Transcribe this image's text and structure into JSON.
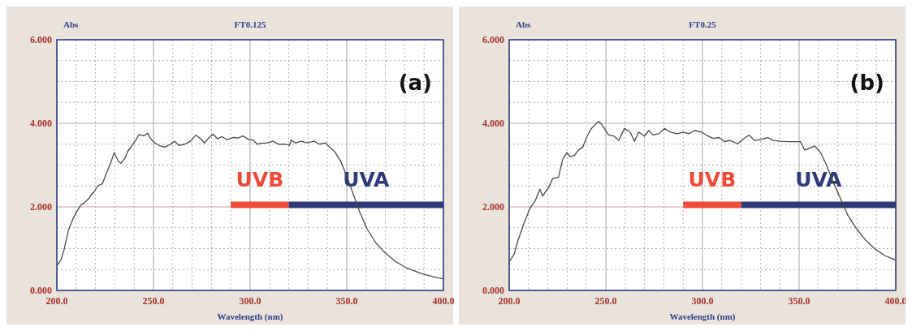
{
  "chart_data": [
    {
      "type": "line",
      "title": "FT0.125",
      "xlabel": "Wavelength (nm)",
      "ylabel": "Abs",
      "annotations": [
        "(a)"
      ],
      "xlim": [
        200,
        400
      ],
      "ylim": [
        0,
        6
      ],
      "xticks": [
        {
          "value": 200,
          "label": "200.0"
        },
        {
          "value": 250,
          "label": "250.0"
        },
        {
          "value": 300,
          "label": "300.0"
        },
        {
          "value": 350,
          "label": "350.0"
        },
        {
          "value": 400,
          "label": "400.0"
        }
      ],
      "yticks": [
        {
          "value": 0,
          "label": "0.000"
        },
        {
          "value": 2,
          "label": "2.000"
        },
        {
          "value": 4,
          "label": "4.000"
        },
        {
          "value": 6,
          "label": "6.000"
        }
      ],
      "grid": true,
      "legend": false,
      "marker": "none",
      "line_style": "solid",
      "series": [
        {
          "name": "UVB",
          "color": "#f04a3a",
          "x": [
            290,
            320
          ],
          "values": [
            2.05,
            2.05
          ]
        },
        {
          "name": "UVA",
          "color": "#2e3a78",
          "x": [
            320,
            400
          ],
          "values": [
            2.05,
            2.05
          ]
        },
        {
          "color": "#4a4a4a",
          "x": [
            200.3,
            202.2,
            203.7,
            205.9,
            208.1,
            210.3,
            212.5,
            214,
            215.4,
            216.9,
            217.6,
            219.1,
            221.3,
            223.5,
            225.7,
            228,
            229.7,
            231.6,
            233.1,
            235.3,
            236.8,
            239,
            241.2,
            242.6,
            244.9,
            247.1,
            248.5,
            250.7,
            252.9,
            255.9,
            258.8,
            261,
            263.2,
            266.2,
            269.1,
            272,
            274.3,
            276.5,
            278.7,
            280.9,
            283.1,
            285.3,
            288.2,
            291.2,
            294.1,
            296.3,
            299.3,
            301.5,
            303.7,
            305.9,
            308.8,
            311.8,
            314.7,
            318.4,
            320.3,
            321.3,
            323.5,
            326.5,
            329.4,
            333.1,
            336,
            339,
            341.2,
            344.1,
            347.1,
            350,
            353,
            356.6,
            360.3,
            364.7,
            369.1,
            375,
            380.9,
            388.2,
            395.6,
            399.7
          ],
          "values": [
            0.61,
            0.74,
            0.97,
            1.43,
            1.69,
            1.89,
            2.05,
            2.09,
            2.15,
            2.22,
            2.28,
            2.35,
            2.51,
            2.55,
            2.81,
            3.07,
            3.3,
            3.11,
            3.04,
            3.17,
            3.34,
            3.47,
            3.63,
            3.73,
            3.7,
            3.76,
            3.63,
            3.53,
            3.47,
            3.43,
            3.5,
            3.57,
            3.47,
            3.5,
            3.57,
            3.72,
            3.63,
            3.53,
            3.66,
            3.74,
            3.63,
            3.68,
            3.61,
            3.66,
            3.65,
            3.7,
            3.61,
            3.6,
            3.5,
            3.52,
            3.53,
            3.57,
            3.5,
            3.5,
            3.47,
            3.6,
            3.53,
            3.57,
            3.53,
            3.57,
            3.5,
            3.53,
            3.43,
            3.3,
            3.07,
            2.74,
            2.35,
            1.89,
            1.49,
            1.16,
            0.93,
            0.7,
            0.54,
            0.41,
            0.32,
            0.28
          ]
        }
      ]
    },
    {
      "type": "line",
      "title": "FT0.25",
      "xlabel": "Wavelength (nm)",
      "ylabel": "Abs",
      "annotations": [
        "(b)"
      ],
      "xlim": [
        200,
        400
      ],
      "ylim": [
        0,
        6
      ],
      "xticks": [
        {
          "value": 200,
          "label": "200.0"
        },
        {
          "value": 250,
          "label": "250.0"
        },
        {
          "value": 300,
          "label": "300.0"
        },
        {
          "value": 350,
          "label": "350.0"
        },
        {
          "value": 400,
          "label": "400.0"
        }
      ],
      "yticks": [
        {
          "value": 0,
          "label": "0.000"
        },
        {
          "value": 2,
          "label": "2.000"
        },
        {
          "value": 4,
          "label": "4.000"
        },
        {
          "value": 6,
          "label": "6.000"
        }
      ],
      "grid": true,
      "legend": false,
      "marker": "none",
      "line_style": "solid",
      "series": [
        {
          "name": "UVB",
          "color": "#f04a3a",
          "x": [
            290,
            320
          ],
          "values": [
            2.05,
            2.05
          ]
        },
        {
          "name": "UVA",
          "color": "#2e3a78",
          "x": [
            320,
            400
          ],
          "values": [
            2.05,
            2.05
          ]
        },
        {
          "color": "#4a4a4a",
          "x": [
            200.3,
            202.5,
            204.7,
            207.7,
            210.7,
            213.6,
            215.9,
            217.3,
            218.8,
            220.3,
            222.5,
            225.5,
            227.7,
            229.9,
            231.4,
            233.7,
            235.9,
            238.1,
            240.3,
            242.6,
            244.8,
            246.3,
            247.7,
            249.2,
            251.4,
            254.4,
            256.7,
            259.6,
            262.6,
            264.8,
            267,
            270,
            272.2,
            274.4,
            277.4,
            280.4,
            283.3,
            287,
            290,
            293,
            295.9,
            299.6,
            302.6,
            305.5,
            308.5,
            311.5,
            314.4,
            318.1,
            321.1,
            324.1,
            327,
            330.7,
            333.7,
            336.6,
            340.3,
            344,
            348.5,
            350.7,
            352.9,
            355.2,
            358.1,
            361.1,
            364.1,
            367.8,
            371.5,
            375.2,
            379.7,
            384.1,
            389.3,
            394.5,
            399.7
          ],
          "values": [
            0.7,
            0.86,
            1.22,
            1.61,
            1.96,
            2.16,
            2.42,
            2.26,
            2.36,
            2.45,
            2.68,
            2.71,
            3.14,
            3.3,
            3.2,
            3.23,
            3.36,
            3.43,
            3.69,
            3.88,
            3.98,
            4.05,
            3.98,
            3.88,
            3.72,
            3.69,
            3.59,
            3.88,
            3.79,
            3.57,
            3.79,
            3.69,
            3.83,
            3.72,
            3.75,
            3.88,
            3.79,
            3.75,
            3.79,
            3.75,
            3.83,
            3.79,
            3.7,
            3.64,
            3.66,
            3.56,
            3.59,
            3.51,
            3.62,
            3.72,
            3.59,
            3.62,
            3.66,
            3.59,
            3.57,
            3.56,
            3.56,
            3.56,
            3.36,
            3.4,
            3.46,
            3.3,
            3.01,
            2.58,
            2.19,
            1.8,
            1.48,
            1.22,
            0.99,
            0.83,
            0.73
          ]
        }
      ]
    }
  ]
}
